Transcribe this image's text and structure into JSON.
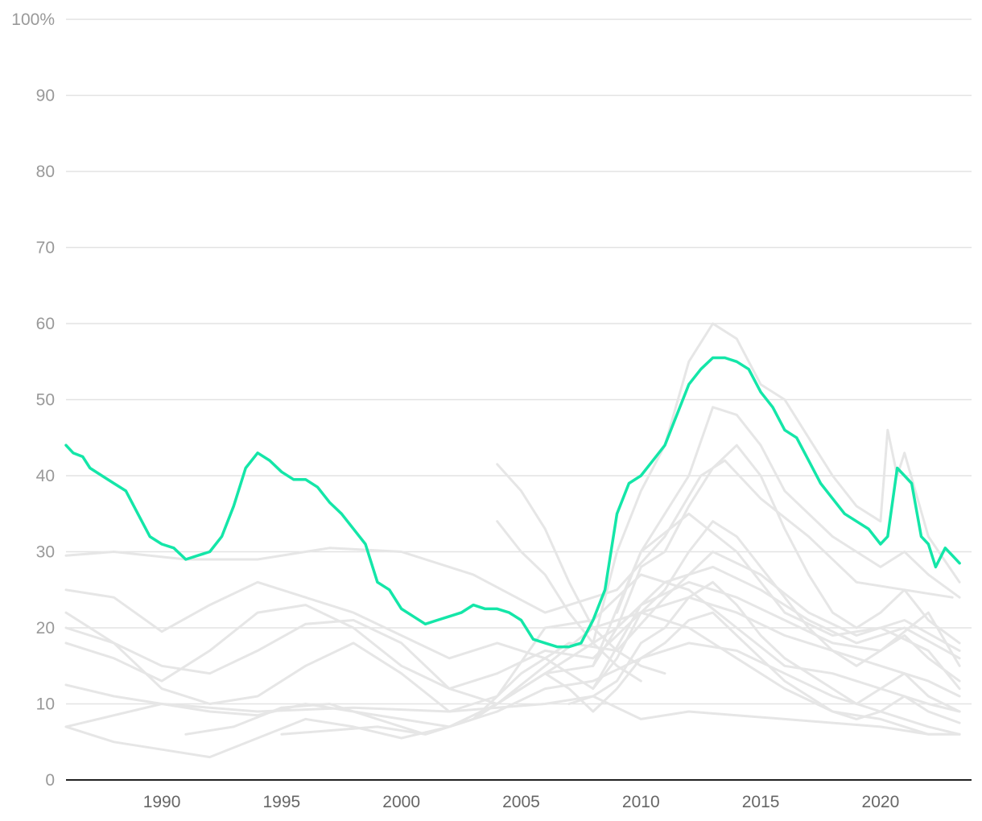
{
  "chart_data": {
    "type": "line",
    "title": "",
    "xlabel": "",
    "ylabel": "",
    "xlim": [
      1986.0,
      2023.8
    ],
    "ylim": [
      0,
      100
    ],
    "y_ticks": [
      {
        "value": 0,
        "label": "0"
      },
      {
        "value": 10,
        "label": "10"
      },
      {
        "value": 20,
        "label": "20"
      },
      {
        "value": 30,
        "label": "30"
      },
      {
        "value": 40,
        "label": "40"
      },
      {
        "value": 50,
        "label": "50"
      },
      {
        "value": 60,
        "label": "60"
      },
      {
        "value": 70,
        "label": "70"
      },
      {
        "value": 80,
        "label": "80"
      },
      {
        "value": 90,
        "label": "90"
      },
      {
        "value": 100,
        "label": "100%"
      }
    ],
    "x_ticks": [
      {
        "value": 1990,
        "label": "1990"
      },
      {
        "value": 1995,
        "label": "1995"
      },
      {
        "value": 2000,
        "label": "2000"
      },
      {
        "value": 2005,
        "label": "2005"
      },
      {
        "value": 2010,
        "label": "2010"
      },
      {
        "value": 2015,
        "label": "2015"
      },
      {
        "value": 2020,
        "label": "2020"
      }
    ],
    "grid": "horizontal",
    "colors": {
      "highlight": "#14e6a8",
      "background_series": "#e6e6e6",
      "grid": "#e3e3e3",
      "axis": "#222222"
    },
    "highlight_series": {
      "x": [
        1986.0,
        1986.3,
        1986.7,
        1987.0,
        1987.5,
        1988.0,
        1988.5,
        1989.0,
        1989.5,
        1990.0,
        1990.5,
        1991.0,
        1991.5,
        1992.0,
        1992.5,
        1993.0,
        1993.5,
        1994.0,
        1994.5,
        1995.0,
        1995.5,
        1996.0,
        1996.5,
        1997.0,
        1997.5,
        1998.0,
        1998.5,
        1999.0,
        1999.5,
        2000.0,
        2000.5,
        2001.0,
        2001.5,
        2002.0,
        2002.5,
        2003.0,
        2003.5,
        2004.0,
        2004.5,
        2005.0,
        2005.5,
        2006.0,
        2006.5,
        2007.0,
        2007.5,
        2008.0,
        2008.5,
        2009.0,
        2009.5,
        2010.0,
        2010.5,
        2011.0,
        2011.5,
        2012.0,
        2012.5,
        2013.0,
        2013.5,
        2014.0,
        2014.5,
        2015.0,
        2015.5,
        2016.0,
        2016.5,
        2017.0,
        2017.5,
        2018.0,
        2018.5,
        2019.0,
        2019.5,
        2020.0,
        2020.3,
        2020.7,
        2021.0,
        2021.3,
        2021.7,
        2022.0,
        2022.3,
        2022.7,
        2023.0,
        2023.3
      ],
      "values": [
        44,
        43,
        42.5,
        41,
        40,
        39,
        38,
        35,
        32,
        31,
        30.5,
        29,
        29.5,
        30,
        32,
        36,
        41,
        43,
        42,
        40.5,
        39.5,
        39.5,
        38.5,
        36.5,
        35,
        33,
        31,
        26,
        25,
        22.5,
        21.5,
        20.5,
        21,
        21.5,
        22,
        23,
        22.5,
        22.5,
        22,
        21,
        18.5,
        18,
        17.5,
        17.5,
        18,
        21,
        25,
        35,
        39,
        40,
        42,
        44,
        48,
        52,
        54,
        55.5,
        55.5,
        55,
        54,
        51,
        49,
        46,
        45,
        42,
        39,
        37,
        35,
        34,
        33,
        31,
        32,
        41,
        40,
        39,
        32,
        31,
        28,
        30.5,
        29.5,
        28.5
      ]
    },
    "background_series": [
      {
        "x": [
          1986.0,
          1988.0,
          1991.0,
          1994.0,
          1997.0,
          2000.0,
          2003.0,
          2006.0,
          2009.0,
          2011.0,
          2012.5,
          2013.5,
          2015.0,
          2017.0,
          2019.0,
          2021.0,
          2023.0
        ],
        "values": [
          29.5,
          30,
          29,
          29,
          30.5,
          30,
          27,
          22,
          25,
          32,
          40,
          42,
          37,
          32,
          26,
          25,
          24
        ]
      },
      {
        "x": [
          1986.0,
          1988.0,
          1990.0,
          1992.0,
          1994.0,
          1996.0,
          1998.0,
          2000.0,
          2002.0,
          2004.0,
          2006.0,
          2008.0,
          2010.0,
          2012.0,
          2014.0,
          2016.0,
          2018.0,
          2020.0,
          2022.0,
          2023.3
        ],
        "values": [
          25,
          24,
          19.5,
          23,
          26,
          24,
          22,
          19,
          16,
          18,
          16,
          12,
          23,
          26,
          24,
          21,
          18,
          17,
          22,
          15
        ]
      },
      {
        "x": [
          1986.0,
          1988.0,
          1990.0,
          1992.0,
          1994.0,
          1996.0,
          1998.0,
          2000.0,
          2002.0,
          2004.0,
          2006.0,
          2008.0,
          2010.0,
          2012.0,
          2014.0,
          2016.0,
          2018.0,
          2020.0,
          2022.0,
          2023.3
        ],
        "values": [
          22,
          18,
          15,
          14,
          17,
          20.5,
          21,
          18,
          12,
          10,
          14,
          15,
          30,
          35,
          30,
          22,
          19,
          20,
          17,
          12
        ]
      },
      {
        "x": [
          1986.0,
          1988.0,
          1990.0,
          1992.0,
          1994.0,
          1996.0,
          1998.0,
          2000.0,
          2002.0,
          2004.0,
          2006.0,
          2008.0,
          2010.0,
          2012.0,
          2014.0,
          2016.0,
          2018.0,
          2020.0,
          2022.0,
          2023.3
        ],
        "values": [
          20,
          18,
          12,
          10,
          11,
          15,
          18,
          14,
          9,
          11,
          20,
          21,
          27,
          25,
          20,
          15,
          14,
          12,
          10,
          9
        ]
      },
      {
        "x": [
          1986.0,
          1988.0,
          1990.0,
          1992.0,
          1994.0,
          1996.0,
          1998.0,
          2000.0,
          2002.0,
          2004.0,
          2006.0,
          2008.0,
          2010.0,
          2012.0,
          2014.0,
          2016.0,
          2018.0,
          2020.0,
          2022.0,
          2023.3
        ],
        "values": [
          12.5,
          11,
          10,
          9,
          8.5,
          10,
          9,
          8,
          7,
          9,
          12,
          13,
          16,
          18,
          17,
          14,
          11,
          9,
          7,
          6
        ]
      },
      {
        "x": [
          1986.0,
          1988.0,
          1990.0,
          1992.0,
          1994.0,
          1996.0,
          1998.0,
          2000.0,
          2002.0,
          2004.0,
          2006.0,
          2008.0,
          2010.0,
          2012.0,
          2014.0,
          2016.0,
          2018.0,
          2020.0,
          2022.0,
          2023.3
        ],
        "values": [
          7,
          5,
          4,
          3,
          5.5,
          8,
          7,
          5.5,
          7,
          10,
          15,
          20,
          22,
          20,
          16,
          12,
          9,
          8,
          6,
          6
        ]
      },
      {
        "x": [
          1986.0,
          1988.0,
          1990.0,
          1992.0,
          1994.0,
          1996.0,
          1998.0,
          2000.0,
          2002.0,
          2004.0,
          2006.0,
          2008.0,
          2010.0,
          2012.0,
          2014.0,
          2016.0,
          2018.0,
          2020.0,
          2022.0,
          2023.3
        ],
        "values": [
          18,
          16,
          13,
          17,
          22,
          23,
          20,
          15,
          12,
          14,
          17,
          16,
          22,
          24,
          22,
          19,
          17,
          15,
          13,
          11
        ]
      },
      {
        "x": [
          1991.0,
          1993.0,
          1995.0,
          1997.0,
          1999.0,
          2001.0,
          2003.0,
          2005.0,
          2007.0,
          2009.0,
          2011.0,
          2013.0,
          2015.0,
          2017.0,
          2019.0,
          2021.0,
          2023.3
        ],
        "values": [
          6,
          7,
          9.5,
          10,
          8,
          6,
          8,
          12,
          16,
          20,
          26,
          28,
          25,
          21,
          18,
          20,
          16
        ]
      },
      {
        "x": [
          1995.0,
          1997.0,
          1999.0,
          2001.0,
          2003.0,
          2005.0,
          2007.0,
          2009.0,
          2011.0,
          2013.0,
          2015.0,
          2017.0,
          2019.0,
          2021.0,
          2023.3
        ],
        "values": [
          6,
          6.5,
          7,
          6,
          8,
          14,
          18,
          17,
          24,
          30,
          27,
          22,
          19,
          21,
          17
        ]
      },
      {
        "x": [
          1986.0,
          1990.0,
          1994.0,
          1998.0,
          2002.0,
          2006.0,
          2008.0,
          2010.0,
          2012.0,
          2014.0,
          2016.0,
          2018.0,
          2020.0,
          2022.0,
          2023.3
        ],
        "values": [
          7,
          10,
          9,
          9.5,
          9,
          10,
          11,
          8,
          9,
          8.5,
          8,
          7.5,
          7,
          6,
          6
        ]
      },
      {
        "x": [
          2004.0,
          2005.0,
          2006.0,
          2007.0,
          2008.0,
          2009.0,
          2010.0,
          2011.0
        ],
        "values": [
          41.5,
          38,
          33,
          26,
          20,
          17,
          15,
          14
        ]
      },
      {
        "x": [
          2004.0,
          2005.0,
          2006.0,
          2007.0,
          2008.0,
          2009.0,
          2010.0
        ],
        "values": [
          34,
          30,
          27,
          22,
          18,
          15,
          13
        ]
      },
      {
        "x": [
          2008.0,
          2009.0,
          2010.0,
          2011.0,
          2012.0,
          2013.0,
          2014.0,
          2015.0,
          2016.0,
          2017.0,
          2018.0,
          2019.0,
          2020.0,
          2020.3,
          2020.7,
          2021.0,
          2022.0,
          2023.3
        ],
        "values": [
          18,
          30,
          38,
          44,
          55,
          60,
          58,
          52,
          50,
          45,
          40,
          36,
          34,
          46,
          40,
          43,
          32,
          26
        ]
      },
      {
        "x": [
          2009.0,
          2010.0,
          2011.0,
          2012.0,
          2013.0,
          2014.0,
          2015.0,
          2016.0,
          2017.0,
          2018.0,
          2019.0,
          2020.0,
          2021.0,
          2022.0,
          2023.3
        ],
        "values": [
          22,
          30,
          35,
          40,
          49,
          48,
          44,
          38,
          35,
          32,
          30,
          28,
          30,
          27,
          24
        ]
      },
      {
        "x": [
          2008.0,
          2009.0,
          2010.0,
          2011.0,
          2012.0,
          2013.0,
          2014.0,
          2015.0,
          2016.0,
          2017.0,
          2018.0,
          2019.0,
          2020.0,
          2021.0,
          2022.0,
          2023.3
        ],
        "values": [
          15,
          20,
          28,
          30,
          36,
          41,
          44,
          40,
          33,
          27,
          22,
          20,
          22,
          25,
          21,
          18
        ]
      },
      {
        "x": [
          2008.0,
          2009.0,
          2010.0,
          2011.0,
          2012.0,
          2013.0,
          2014.0,
          2015.0,
          2016.0,
          2017.0,
          2018.0,
          2019.0,
          2020.0,
          2021.0,
          2022.0,
          2023.3
        ],
        "values": [
          12,
          16,
          22,
          25,
          30,
          34,
          32,
          28,
          24,
          20,
          17,
          15,
          17,
          19,
          16,
          13
        ]
      },
      {
        "x": [
          2007.0,
          2008.0,
          2009.0,
          2010.0,
          2011.0,
          2012.0,
          2013.0,
          2014.0,
          2015.0,
          2016.0,
          2017.0,
          2018.0,
          2019.0,
          2020.0,
          2021.0,
          2022.0,
          2023.3
        ],
        "values": [
          10,
          11,
          13,
          18,
          20,
          24,
          26,
          23,
          19,
          16,
          14,
          12,
          10,
          12,
          14,
          11,
          9
        ]
      },
      {
        "x": [
          2006.0,
          2007.0,
          2008.0,
          2009.0,
          2010.0,
          2011.0,
          2012.0,
          2013.0,
          2014.0,
          2015.0,
          2016.0,
          2017.0,
          2018.0,
          2019.0,
          2020.0,
          2021.0,
          2022.0,
          2023.3
        ],
        "values": [
          14,
          12,
          9,
          12,
          16,
          18,
          21,
          22,
          19,
          16,
          13,
          11,
          9,
          8,
          9,
          11,
          9,
          7.5
        ]
      }
    ]
  }
}
